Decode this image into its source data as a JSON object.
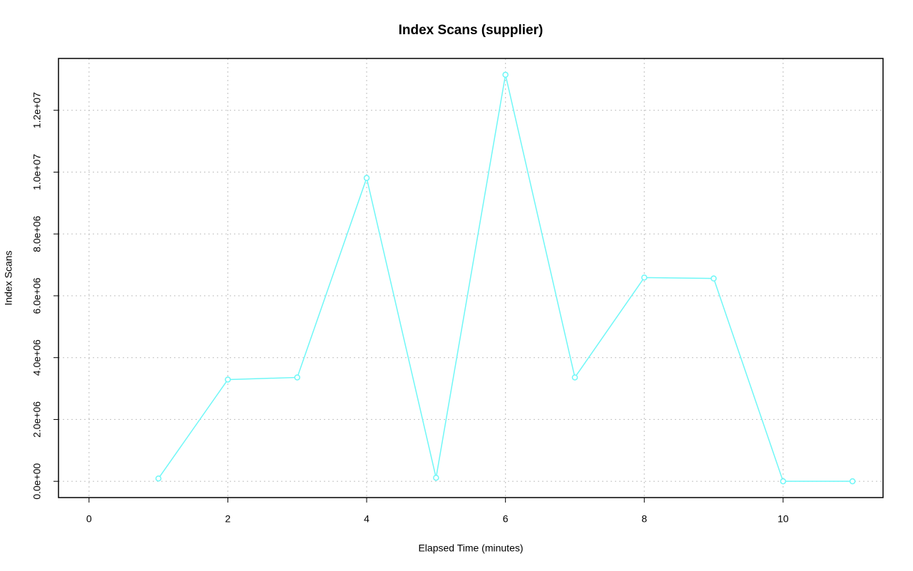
{
  "chart_data": {
    "type": "line",
    "title": "Index Scans (supplier)",
    "x_label": "Elapsed Time (minutes)",
    "y_label": "Index Scans",
    "x": [
      1,
      2,
      3,
      4,
      5,
      6,
      7,
      8,
      9,
      10,
      11
    ],
    "series": [
      {
        "name": "Index Scans",
        "color": "#6ff7f7",
        "values": [
          92000,
          3290000,
          3360000,
          9810000,
          115000,
          13150000,
          3360000,
          6590000,
          6560000,
          0,
          0
        ]
      }
    ],
    "xlim": [
      -0.44,
      11.44
    ],
    "xticks": [
      0,
      2,
      4,
      6,
      8,
      10
    ],
    "ylim": [
      -526000,
      13676000
    ],
    "yticks": [
      {
        "value": 0,
        "label": "0.0e+00"
      },
      {
        "value": 2000000,
        "label": "2.0e+06"
      },
      {
        "value": 4000000,
        "label": "4.0e+06"
      },
      {
        "value": 6000000,
        "label": "6.0e+06"
      },
      {
        "value": 8000000,
        "label": "8.0e+06"
      },
      {
        "value": 10000000,
        "label": "1.0e+07"
      },
      {
        "value": 12000000,
        "label": "1.2e+07"
      }
    ],
    "grid": true
  }
}
